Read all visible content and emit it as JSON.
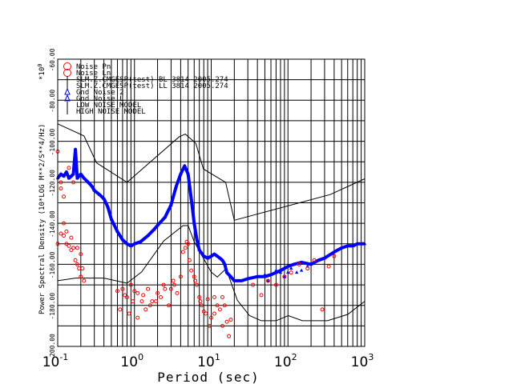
{
  "chart_data": {
    "type": "scatter",
    "xlabel": "Period (sec)",
    "ylabel": "Power Spectral Density (10*LOG M**2/S**4/Hz)",
    "scale_note": "*10",
    "scale_note_exp": "0",
    "x_scale": "log",
    "xlim": [
      0.1,
      1000
    ],
    "ylim": [
      -200,
      -60
    ],
    "grid": true,
    "legend_placement": "top-left inside",
    "x_ticks": [
      {
        "base": "10",
        "exp": "-1",
        "value": 0.1
      },
      {
        "base": "10",
        "exp": "0",
        "value": 1
      },
      {
        "base": "10",
        "exp": "1",
        "value": 10
      },
      {
        "base": "10",
        "exp": "2",
        "value": 100
      },
      {
        "base": "10",
        "exp": "3",
        "value": 1000
      }
    ],
    "y_ticks": [
      "-60.00",
      "-80.00",
      "-100.00",
      "-120.00",
      "-140.00",
      "-160.00",
      "-180.00",
      "-200.00"
    ],
    "y_tick_values": [
      -60,
      -80,
      -100,
      -120,
      -140,
      -160,
      -180,
      -200
    ],
    "legend": [
      {
        "label": "Noise Pn",
        "marker": "circle",
        "color": "#ff0000"
      },
      {
        "label": "Noise Ln",
        "marker": "circle",
        "color": "#ff0000"
      },
      {
        "label": "SLM.Z.CMGESP(test) BL 3814 2005.274",
        "marker": "line",
        "color": "#000000"
      },
      {
        "label": "SLM.Z.CMGESP(test) LL 3814 2005.274",
        "marker": "line",
        "color": "#000000"
      },
      {
        "label": "Gnd Noise 2",
        "marker": "triangle",
        "color": "#0000ff"
      },
      {
        "label": "Gnd Noise L",
        "marker": "triangle",
        "color": "#0000ff"
      },
      {
        "label": "LOW NOISE MODEL",
        "marker": "line",
        "color": "#000000"
      },
      {
        "label": "HIGH NOISE MODEL",
        "marker": "line",
        "color": "#000000"
      }
    ],
    "series": [
      {
        "name": "HIGH NOISE MODEL",
        "style": "line",
        "color": "#000000",
        "x": [
          0.1,
          0.22,
          0.32,
          0.8,
          3.8,
          4.6,
          6.3,
          7.9,
          15.4,
          20,
          354.8,
          1000
        ],
        "y": [
          -91.5,
          -97.4,
          -110.5,
          -120,
          -97.9,
          -96.5,
          -101,
          -113.5,
          -120,
          -138.5,
          -126,
          -118.3
        ]
      },
      {
        "name": "LOW NOISE MODEL",
        "style": "line",
        "color": "#000000",
        "x": [
          0.1,
          0.17,
          0.4,
          0.8,
          1.24,
          2.4,
          4.3,
          5,
          6,
          10,
          12,
          15.6,
          21.9,
          31.6,
          45,
          70,
          101,
          154,
          328,
          600,
          1000
        ],
        "y": [
          -168,
          -166.7,
          -166.7,
          -169.2,
          -163.7,
          -148.6,
          -141.1,
          -141.1,
          -149,
          -163.8,
          -166.2,
          -162.1,
          -177.5,
          -185,
          -187.5,
          -187.5,
          -185,
          -187.5,
          -187.5,
          -184.4,
          -178
        ]
      },
      {
        "name": "Gnd Noise 2",
        "style": "points",
        "color": "#0000ff",
        "marker": "triangle",
        "x": [
          0.1,
          0.11,
          0.12,
          0.13,
          0.14,
          0.15,
          0.16,
          0.17,
          0.18,
          0.2,
          0.22,
          0.25,
          0.28,
          0.3,
          0.35,
          0.4,
          0.45,
          0.5,
          0.6,
          0.7,
          0.8,
          0.9,
          1,
          1.2,
          1.5,
          1.8,
          2,
          2.5,
          3,
          3.5,
          4,
          4.5,
          5,
          5.5,
          6,
          6.5,
          7,
          8,
          9,
          10,
          11,
          12,
          13,
          14,
          15,
          16,
          18,
          20,
          25,
          30,
          40,
          50,
          60,
          70,
          80,
          100,
          120,
          150,
          200,
          250,
          300,
          400,
          500,
          600,
          700,
          800,
          1000
        ],
        "y": [
          -118,
          -116,
          -117,
          -115,
          -118,
          -117,
          -116,
          -104,
          -118,
          -116,
          -118,
          -120,
          -122,
          -124,
          -126,
          -128,
          -132,
          -138,
          -144,
          -148,
          -150,
          -151,
          -150,
          -149,
          -146,
          -143,
          -141,
          -137,
          -131,
          -122,
          -116,
          -112,
          -116,
          -128,
          -140,
          -148,
          -153,
          -156,
          -157,
          -156,
          -155,
          -156,
          -157,
          -158,
          -160,
          -164,
          -166,
          -168,
          -168,
          -167,
          -166,
          -166,
          -165,
          -164,
          -163,
          -161,
          -160,
          -159,
          -160,
          -158,
          -157,
          -154,
          -152,
          -151,
          -151,
          -150,
          -150
        ]
      },
      {
        "name": "Gnd Noise L",
        "style": "points",
        "color": "#0000ff",
        "marker": "triangle",
        "x": [
          40,
          50,
          55,
          60,
          70,
          80,
          90,
          100,
          110,
          130,
          150,
          180
        ],
        "y": [
          -166,
          -165,
          -168,
          -165,
          -163,
          -164,
          -166,
          -164,
          -162,
          -164,
          -163,
          -161
        ]
      },
      {
        "name": "Noise Pn",
        "style": "points",
        "color": "#ff0000",
        "marker": "circle",
        "x": [
          0.1,
          0.1,
          0.11,
          0.11,
          0.12,
          0.12,
          0.13,
          0.13,
          0.14,
          0.15,
          0.15,
          0.16,
          0.17,
          0.18,
          0.19,
          0.2,
          0.21,
          0.22,
          0.6,
          0.7,
          0.8,
          0.9,
          1,
          1.1,
          1.3,
          1.5,
          1.7,
          2,
          2.2,
          2.5,
          2.8,
          3,
          3.3,
          3.6,
          4,
          4.3,
          4.6,
          5,
          5.5,
          6,
          6.5,
          7,
          7.5,
          8,
          9,
          10,
          11,
          12,
          13,
          14,
          15,
          16,
          17
        ],
        "y": [
          -105,
          -150,
          -145,
          -120,
          -146,
          -140,
          -150,
          -144,
          -151,
          -147,
          -153,
          -152,
          -158,
          -160,
          -162,
          -166,
          -162,
          -168,
          -173,
          -172,
          -176,
          -170,
          -173,
          -174,
          -175,
          -172,
          -178,
          -174,
          -176,
          -172,
          -180,
          -172,
          -170,
          -174,
          -166,
          -154,
          -152,
          -150,
          -163,
          -166,
          -170,
          -176,
          -180,
          -183,
          -177,
          -186,
          -176,
          -180,
          -182,
          -176,
          -180,
          -188,
          -195
        ]
      },
      {
        "name": "Noise Ln",
        "style": "points",
        "color": "#ff0000",
        "marker": "circle",
        "x": [
          0.11,
          0.12,
          0.14,
          0.16,
          0.18,
          0.2,
          0.65,
          0.75,
          0.85,
          0.95,
          1.1,
          1.25,
          1.4,
          1.6,
          1.9,
          2.4,
          3.2,
          4.8,
          5.2,
          6.2,
          7.2,
          8.5,
          9.5,
          11,
          14,
          18,
          35,
          45,
          55,
          70,
          90,
          110,
          140,
          180,
          220,
          280,
          340,
          400
        ],
        "y": [
          -123,
          -127,
          -113,
          -120,
          -152,
          -155,
          -182,
          -175,
          -184,
          -178,
          -186,
          -178,
          -182,
          -180,
          -178,
          -170,
          -168,
          -149,
          -158,
          -168,
          -178,
          -184,
          -190,
          -184,
          -190,
          -187,
          -170,
          -175,
          -168,
          -170,
          -166,
          -164,
          -160,
          -162,
          -158,
          -182,
          -161,
          -156
        ]
      }
    ]
  }
}
